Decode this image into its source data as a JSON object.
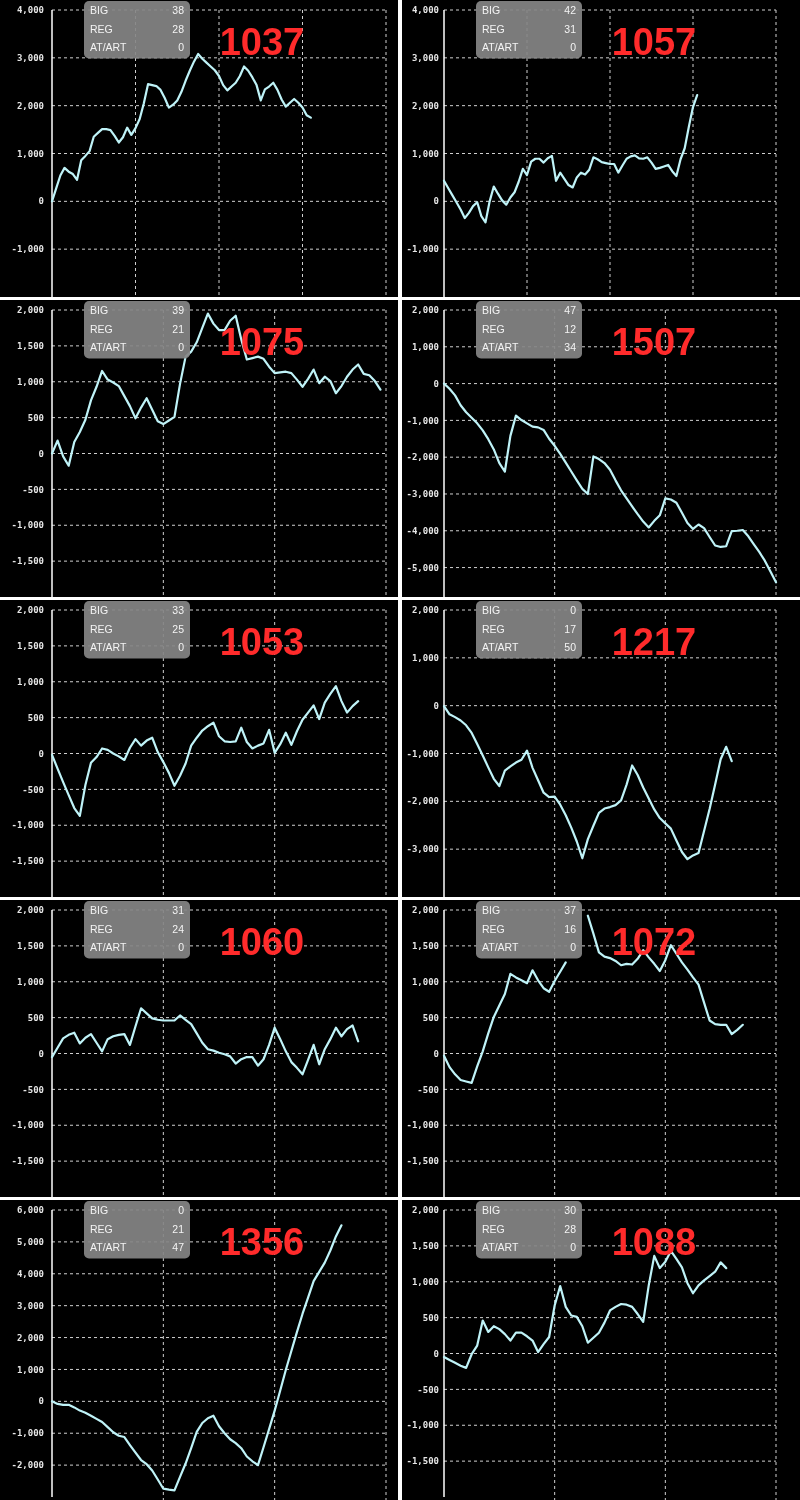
{
  "chart_data": [
    {
      "type": "line",
      "title": "1037",
      "annotations": [
        "BIG",
        "38",
        "REG",
        "28",
        "AT/ART",
        "0"
      ],
      "color": "#bff3f8",
      "grid": true,
      "ylim": [
        -2000,
        4000
      ],
      "yticks": [
        {
          "value": -1000,
          "label": "-1,000"
        },
        0,
        {
          "value": 1000,
          "label": "1,000"
        },
        {
          "value": 2000,
          "label": "2,000"
        },
        {
          "value": 3000,
          "label": "3,000"
        },
        {
          "value": 4000,
          "label": "4,000"
        }
      ],
      "categories": [
        null,
        null,
        null,
        null,
        null,
        null,
        null,
        null,
        null,
        null,
        null,
        null,
        null,
        null,
        null,
        null,
        null,
        null,
        null,
        null,
        null,
        null,
        null,
        null,
        null,
        null,
        null,
        null,
        null,
        null,
        null,
        null,
        null,
        null,
        null,
        null,
        null,
        null,
        null,
        null,
        null,
        null,
        null,
        null,
        null,
        null,
        null,
        null,
        null,
        null,
        null,
        null,
        null,
        null,
        null,
        null,
        null,
        null,
        null,
        null,
        null,
        null,
        null,
        null,
        null,
        null,
        null,
        null,
        null,
        null,
        null,
        null,
        null,
        null,
        null,
        null,
        null,
        null,
        null,
        null,
        null
      ],
      "values": [
        0,
        270,
        540,
        700,
        620,
        570,
        450,
        860,
        950,
        1050,
        1350,
        1430,
        1510,
        1510,
        1490,
        1370,
        1230,
        1340,
        1540,
        1390,
        1530,
        1720,
        2050,
        2450,
        2430,
        2410,
        2330,
        2160,
        1960,
        2020,
        2110,
        2290,
        2520,
        2730,
        2920,
        3080,
        2980,
        2900,
        2820,
        2740,
        2620,
        2430,
        2320,
        2400,
        2480,
        2620,
        2820,
        2730,
        2590,
        2430,
        2110,
        2340,
        2400,
        2480,
        2330,
        2130,
        1980,
        2060,
        2140,
        2060,
        1960,
        1800,
        1750,
        null,
        null,
        null,
        null,
        null,
        null,
        null,
        null,
        null,
        null,
        null,
        null,
        null,
        null,
        null,
        null,
        null,
        null
      ]
    },
    {
      "type": "line",
      "title": "1057",
      "annotations": [
        "BIG",
        "42",
        "REG",
        "31",
        "AT/ART",
        "0"
      ],
      "color": "#bff3f8",
      "grid": true,
      "ylim": [
        -2000,
        4000
      ],
      "yticks": [
        {
          "value": -1000,
          "label": "-1,000"
        },
        0,
        {
          "value": 1000,
          "label": "1,000"
        },
        {
          "value": 2000,
          "label": "2,000"
        },
        {
          "value": 3000,
          "label": "3,000"
        },
        {
          "value": 4000,
          "label": "4,000"
        }
      ],
      "categories": [
        null,
        null,
        null,
        null,
        null,
        null,
        null,
        null,
        null,
        null,
        null,
        null,
        null,
        null,
        null,
        null,
        null,
        null,
        null,
        null,
        null,
        null,
        null,
        null,
        null,
        null,
        null,
        null,
        null,
        null,
        null,
        null,
        null,
        null,
        null,
        null,
        null,
        null,
        null,
        null,
        null,
        null,
        null,
        null,
        null,
        null,
        null,
        null,
        null,
        null,
        null,
        null,
        null,
        null,
        null,
        null,
        null,
        null,
        null,
        null,
        null,
        null,
        null,
        null,
        null,
        null,
        null,
        null,
        null,
        null,
        null,
        null,
        null,
        null,
        null,
        null,
        null,
        null,
        null,
        null,
        null
      ],
      "values": [
        430,
        280,
        130,
        -20,
        -170,
        -350,
        -240,
        -100,
        -20,
        -310,
        -440,
        0,
        310,
        160,
        20,
        -70,
        80,
        190,
        410,
        680,
        550,
        830,
        890,
        890,
        810,
        900,
        950,
        430,
        600,
        470,
        340,
        290,
        500,
        600,
        560,
        660,
        920,
        880,
        820,
        800,
        780,
        780,
        600,
        750,
        890,
        940,
        960,
        900,
        890,
        920,
        810,
        680,
        700,
        730,
        760,
        630,
        530,
        880,
        1110,
        1560,
        1970,
        2220,
        null,
        null,
        null,
        null,
        null,
        null,
        null,
        null,
        null,
        null,
        null,
        null,
        null,
        null,
        null,
        null,
        null,
        null,
        null
      ]
    },
    {
      "type": "line",
      "title": "1075",
      "annotations": [
        "BIG",
        "39",
        "REG",
        "21",
        "AT/ART",
        "0"
      ],
      "color": "#bff3f8",
      "grid": true,
      "ylim": [
        -2000,
        2000
      ],
      "yticks": [
        {
          "value": -1500,
          "label": "-1,500"
        },
        {
          "value": -1000,
          "label": "-1,000"
        },
        -500,
        0,
        500,
        {
          "value": 1000,
          "label": "1,000"
        },
        {
          "value": 1500,
          "label": "1,500"
        },
        {
          "value": 2000,
          "label": "2,000"
        }
      ],
      "categories": [
        null,
        null,
        null,
        null,
        null,
        null,
        null,
        null,
        null,
        null,
        null,
        null,
        null,
        null,
        null,
        null,
        null,
        null,
        null,
        null,
        null,
        null,
        null,
        null,
        null,
        null,
        null,
        null,
        null,
        null,
        null,
        null,
        null,
        null,
        null,
        null,
        null,
        null,
        null,
        null,
        null,
        null,
        null,
        null,
        null,
        null,
        null,
        null,
        null,
        null,
        null,
        null,
        null,
        null,
        null,
        null,
        null,
        null,
        null,
        null,
        null
      ],
      "values": [
        0,
        180,
        -40,
        -170,
        160,
        300,
        470,
        740,
        930,
        1150,
        1030,
        990,
        940,
        800,
        660,
        490,
        640,
        770,
        610,
        450,
        410,
        460,
        510,
        970,
        1350,
        1420,
        1550,
        1750,
        1950,
        1810,
        1720,
        1720,
        1850,
        1920,
        1590,
        1310,
        1330,
        1350,
        1320,
        1210,
        1120,
        1130,
        1140,
        1120,
        1030,
        930,
        1040,
        1170,
        980,
        1070,
        1010,
        840,
        940,
        1070,
        1170,
        1240,
        1110,
        1090,
        1010,
        890,
        null
      ]
    },
    {
      "type": "line",
      "title": "1507",
      "annotations": [
        "BIG",
        "47",
        "REG",
        "12",
        "AT/ART",
        "34"
      ],
      "color": "#bff3f8",
      "grid": true,
      "ylim": [
        -5800,
        2000
      ],
      "yticks": [
        {
          "value": -5000,
          "label": "-5,000"
        },
        {
          "value": -4000,
          "label": "-4,000"
        },
        {
          "value": -3000,
          "label": "-3,000"
        },
        {
          "value": -2000,
          "label": "-2,000"
        },
        {
          "value": -1000,
          "label": "-1,000"
        },
        0,
        {
          "value": 1000,
          "label": "1,000"
        },
        {
          "value": 2000,
          "label": "2,000"
        }
      ],
      "categories": [
        null,
        null,
        null,
        null,
        null,
        null,
        null,
        null,
        null,
        null,
        null,
        null,
        null,
        null,
        null,
        null,
        null,
        null,
        null,
        null,
        null,
        null,
        null,
        null,
        null,
        null,
        null,
        null,
        null,
        null,
        null,
        null,
        null,
        null,
        null,
        null,
        null,
        null,
        null,
        null,
        null,
        null,
        null,
        null,
        null,
        null,
        null,
        null,
        null,
        null,
        null,
        null,
        null,
        null,
        null,
        null,
        null,
        null,
        null,
        null,
        null
      ],
      "values": [
        0,
        -140,
        -320,
        -590,
        -780,
        -930,
        -1080,
        -1270,
        -1510,
        -1790,
        -2160,
        -2390,
        -1420,
        -870,
        -990,
        -1080,
        -1170,
        -1190,
        -1260,
        -1500,
        -1690,
        -1910,
        -2150,
        -2390,
        -2630,
        -2860,
        -3000,
        -1980,
        -2050,
        -2160,
        -2340,
        -2630,
        -2900,
        -3120,
        -3340,
        -3550,
        -3750,
        -3910,
        -3730,
        -3580,
        -3120,
        -3150,
        -3240,
        -3510,
        -3790,
        -3950,
        -3830,
        -3930,
        -4170,
        -4400,
        -4440,
        -4420,
        -4010,
        -4000,
        -3980,
        -4150,
        -4370,
        -4580,
        -4820,
        -5110,
        -5400
      ]
    },
    {
      "type": "line",
      "title": "1053",
      "annotations": [
        "BIG",
        "33",
        "REG",
        "25",
        "AT/ART",
        "0"
      ],
      "color": "#bff3f8",
      "grid": true,
      "ylim": [
        -2000,
        2000
      ],
      "yticks": [
        {
          "value": -1500,
          "label": "-1,500"
        },
        {
          "value": -1000,
          "label": "-1,000"
        },
        -500,
        0,
        500,
        {
          "value": 1000,
          "label": "1,000"
        },
        {
          "value": 1500,
          "label": "1,500"
        },
        {
          "value": 2000,
          "label": "2,000"
        }
      ],
      "categories": [
        null,
        null,
        null,
        null,
        null,
        null,
        null,
        null,
        null,
        null,
        null,
        null,
        null,
        null,
        null,
        null,
        null,
        null,
        null,
        null,
        null,
        null,
        null,
        null,
        null,
        null,
        null,
        null,
        null,
        null,
        null,
        null,
        null,
        null,
        null,
        null,
        null,
        null,
        null,
        null,
        null,
        null,
        null,
        null,
        null,
        null,
        null,
        null,
        null,
        null,
        null,
        null,
        null,
        null,
        null,
        null,
        null,
        null,
        null,
        null,
        null
      ],
      "values": [
        -20,
        -210,
        -400,
        -580,
        -760,
        -870,
        -440,
        -130,
        -50,
        70,
        50,
        0,
        -40,
        -90,
        80,
        200,
        110,
        180,
        220,
        20,
        -120,
        -270,
        -450,
        -310,
        -140,
        110,
        220,
        320,
        380,
        430,
        240,
        170,
        160,
        170,
        360,
        160,
        70,
        110,
        140,
        330,
        10,
        130,
        290,
        120,
        310,
        470,
        570,
        670,
        480,
        710,
        830,
        940,
        730,
        570,
        660,
        730,
        null,
        null,
        null,
        null,
        null
      ]
    },
    {
      "type": "line",
      "title": "1217",
      "annotations": [
        "BIG",
        "0",
        "REG",
        "17",
        "AT/ART",
        "50"
      ],
      "color": "#bff3f8",
      "grid": true,
      "ylim": [
        -4000,
        2000
      ],
      "yticks": [
        {
          "value": -3000,
          "label": "-3,000"
        },
        {
          "value": -2000,
          "label": "-2,000"
        },
        {
          "value": -1000,
          "label": "-1,000"
        },
        0,
        {
          "value": 1000,
          "label": "1,000"
        },
        {
          "value": 2000,
          "label": "2,000"
        }
      ],
      "categories": [
        null,
        null,
        null,
        null,
        null,
        null,
        null,
        null,
        null,
        null,
        null,
        null,
        null,
        null,
        null,
        null,
        null,
        null,
        null,
        null,
        null,
        null,
        null,
        null,
        null,
        null,
        null,
        null,
        null,
        null,
        null,
        null,
        null,
        null,
        null,
        null,
        null,
        null,
        null,
        null,
        null,
        null,
        null,
        null,
        null,
        null,
        null,
        null,
        null,
        null,
        null,
        null,
        null,
        null,
        null,
        null,
        null,
        null,
        null,
        null,
        null
      ],
      "values": [
        -10,
        -180,
        -240,
        -310,
        -410,
        -570,
        -800,
        -1040,
        -1290,
        -1530,
        -1680,
        -1360,
        -1270,
        -1190,
        -1130,
        -940,
        -1300,
        -1560,
        -1820,
        -1910,
        -1900,
        -2070,
        -2290,
        -2550,
        -2840,
        -3190,
        -2790,
        -2510,
        -2240,
        -2150,
        -2120,
        -2080,
        -1980,
        -1650,
        -1250,
        -1450,
        -1710,
        -1940,
        -2170,
        -2350,
        -2460,
        -2570,
        -2820,
        -3060,
        -3210,
        -3130,
        -3080,
        -2620,
        -2160,
        -1650,
        -1120,
        -860,
        -1160,
        null,
        null,
        null,
        null,
        null,
        null,
        null,
        null
      ]
    },
    {
      "type": "line",
      "title": "1060",
      "annotations": [
        "BIG",
        "31",
        "REG",
        "24",
        "AT/ART",
        "0"
      ],
      "color": "#bff3f8",
      "grid": true,
      "ylim": [
        -2000,
        2000
      ],
      "yticks": [
        {
          "value": -1500,
          "label": "-1,500"
        },
        {
          "value": -1000,
          "label": "-1,000"
        },
        -500,
        0,
        500,
        {
          "value": 1000,
          "label": "1,000"
        },
        {
          "value": 1500,
          "label": "1,500"
        },
        {
          "value": 2000,
          "label": "2,000"
        }
      ],
      "categories": [
        null,
        null,
        null,
        null,
        null,
        null,
        null,
        null,
        null,
        null,
        null,
        null,
        null,
        null,
        null,
        null,
        null,
        null,
        null,
        null,
        null,
        null,
        null,
        null,
        null,
        null,
        null,
        null,
        null,
        null,
        null,
        null,
        null,
        null,
        null,
        null,
        null,
        null,
        null,
        null,
        null,
        null,
        null,
        null,
        null,
        null,
        null,
        null,
        null,
        null,
        null,
        null,
        null,
        null,
        null,
        null,
        null,
        null,
        null,
        null,
        null
      ],
      "values": [
        -50,
        80,
        210,
        260,
        290,
        140,
        220,
        270,
        150,
        30,
        200,
        240,
        260,
        270,
        120,
        380,
        630,
        560,
        490,
        470,
        460,
        460,
        460,
        530,
        470,
        410,
        280,
        150,
        60,
        40,
        10,
        -10,
        -40,
        -140,
        -80,
        -50,
        -50,
        -170,
        -80,
        120,
        360,
        200,
        30,
        -120,
        -200,
        -290,
        -90,
        120,
        -150,
        60,
        200,
        360,
        240,
        340,
        390,
        170,
        null,
        null,
        null,
        null,
        null
      ]
    },
    {
      "type": "line",
      "title": "1072",
      "annotations": [
        "BIG",
        "37",
        "REG",
        "16",
        "AT/ART",
        "0"
      ],
      "color": "#bff3f8",
      "grid": true,
      "ylim": [
        -2000,
        2000
      ],
      "yticks": [
        {
          "value": -1500,
          "label": "-1,500"
        },
        {
          "value": -1000,
          "label": "-1,000"
        },
        -500,
        0,
        500,
        {
          "value": 1000,
          "label": "1,000"
        },
        {
          "value": 1500,
          "label": "1,500"
        },
        {
          "value": 2000,
          "label": "2,000"
        }
      ],
      "categories": [
        null,
        null,
        null,
        null,
        null,
        null,
        null,
        null,
        null,
        null,
        null,
        null,
        null,
        null,
        null,
        null,
        null,
        null,
        null,
        null,
        null,
        null,
        null,
        null,
        null,
        null,
        null,
        null,
        null,
        null,
        null,
        null,
        null,
        null,
        null,
        null,
        null,
        null,
        null,
        null,
        null,
        null,
        null,
        null,
        null,
        null,
        null,
        null,
        null,
        null,
        null,
        null,
        null,
        null,
        null,
        null,
        null,
        null,
        null,
        null,
        null
      ],
      "values": [
        -30,
        -190,
        -290,
        -370,
        -390,
        -410,
        -180,
        30,
        280,
        510,
        670,
        830,
        1110,
        1060,
        1020,
        980,
        1160,
        1020,
        910,
        860,
        1010,
        1140,
        1270,
        null,
        null,
        null,
        1920,
        1670,
        1410,
        1350,
        1330,
        1290,
        1230,
        1250,
        1240,
        1320,
        1440,
        1340,
        1250,
        1150,
        1300,
        1510,
        1390,
        1270,
        1170,
        1060,
        960,
        710,
        460,
        410,
        400,
        400,
        270,
        330,
        400,
        null,
        null,
        null,
        null,
        null,
        null
      ]
    },
    {
      "type": "line",
      "title": "1356",
      "annotations": [
        "BIG",
        "0",
        "REG",
        "21",
        "AT/ART",
        "47"
      ],
      "color": "#bff3f8",
      "grid": true,
      "ylim": [
        -3000,
        6000
      ],
      "yticks": [
        {
          "value": -2000,
          "label": "-2,000"
        },
        {
          "value": -1000,
          "label": "-1,000"
        },
        0,
        {
          "value": 1000,
          "label": "1,000"
        },
        {
          "value": 2000,
          "label": "2,000"
        },
        {
          "value": 3000,
          "label": "3,000"
        },
        {
          "value": 4000,
          "label": "4,000"
        },
        {
          "value": 5000,
          "label": "5,000"
        },
        {
          "value": 6000,
          "label": "6,000"
        }
      ],
      "categories": [
        null,
        null,
        null,
        null,
        null,
        null,
        null,
        null,
        null,
        null,
        null,
        null,
        null,
        null,
        null,
        null,
        null,
        null,
        null,
        null,
        null,
        null,
        null,
        null,
        null,
        null,
        null,
        null,
        null,
        null,
        null,
        null,
        null,
        null,
        null,
        null,
        null,
        null,
        null,
        null,
        null,
        null,
        null,
        null,
        null,
        null,
        null,
        null,
        null,
        null,
        null,
        null,
        null,
        null,
        null,
        null,
        null,
        null,
        null,
        null,
        null
      ],
      "values": [
        0,
        -80,
        -110,
        -110,
        -190,
        -290,
        -360,
        -450,
        -550,
        -650,
        -810,
        -970,
        -1080,
        -1120,
        -1370,
        -1610,
        -1840,
        -1970,
        -2170,
        -2450,
        -2740,
        -2770,
        -2790,
        -2370,
        -1950,
        -1470,
        -960,
        -680,
        -530,
        -450,
        -780,
        -1000,
        -1190,
        -1310,
        -1470,
        -1730,
        -1880,
        -2000,
        -1440,
        -870,
        -290,
        340,
        980,
        1580,
        2170,
        2740,
        3250,
        3770,
        4060,
        4350,
        4730,
        5170,
        5520,
        null,
        null,
        null,
        null,
        null,
        null,
        null,
        null
      ]
    },
    {
      "type": "line",
      "title": "1088",
      "annotations": [
        "BIG",
        "30",
        "REG",
        "28",
        "AT/ART",
        "0"
      ],
      "color": "#bff3f8",
      "grid": true,
      "ylim": [
        -2000,
        2000
      ],
      "yticks": [
        {
          "value": -1500,
          "label": "-1,500"
        },
        {
          "value": -1000,
          "label": "-1,000"
        },
        -500,
        0,
        500,
        {
          "value": 1000,
          "label": "1,000"
        },
        {
          "value": 1500,
          "label": "1,500"
        },
        {
          "value": 2000,
          "label": "2,000"
        }
      ],
      "categories": [
        null,
        null,
        null,
        null,
        null,
        null,
        null,
        null,
        null,
        null,
        null,
        null,
        null,
        null,
        null,
        null,
        null,
        null,
        null,
        null,
        null,
        null,
        null,
        null,
        null,
        null,
        null,
        null,
        null,
        null,
        null,
        null,
        null,
        null,
        null,
        null,
        null,
        null,
        null,
        null,
        null,
        null,
        null,
        null,
        null,
        null,
        null,
        null,
        null,
        null,
        null,
        null,
        null,
        null,
        null,
        null,
        null,
        null,
        null,
        null,
        null
      ],
      "values": [
        -50,
        -90,
        -130,
        -170,
        -200,
        -10,
        110,
        460,
        300,
        380,
        340,
        270,
        180,
        290,
        290,
        240,
        180,
        20,
        130,
        230,
        670,
        940,
        650,
        530,
        510,
        380,
        150,
        220,
        290,
        430,
        600,
        650,
        690,
        680,
        650,
        550,
        440,
        950,
        1360,
        1190,
        1280,
        1430,
        1320,
        1200,
        980,
        840,
        950,
        1020,
        1080,
        1140,
        1270,
        1190,
        null,
        null,
        null,
        null,
        null,
        null,
        null,
        null,
        null
      ]
    }
  ]
}
